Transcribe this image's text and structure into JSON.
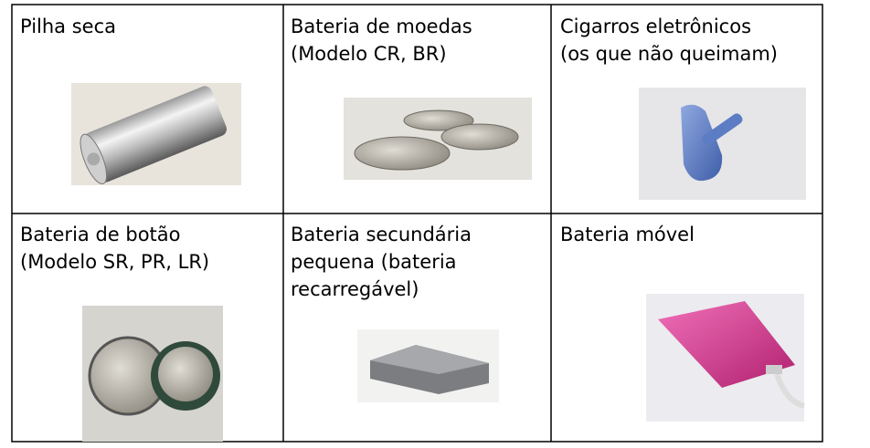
{
  "table": {
    "rows": [
      [
        {
          "lines": [
            "Pilha seca"
          ]
        },
        {
          "lines": [
            "Bateria de moedas",
            "(Modelo CR, BR)"
          ]
        },
        {
          "lines": [
            "Cigarros eletrônicos",
            "(os que não queimam)"
          ]
        }
      ],
      [
        {
          "lines": [
            "Bateria de botão",
            "(Modelo SR, PR, LR)"
          ]
        },
        {
          "lines": [
            "Bateria secundária",
            "pequena (bateria",
            "recarregável)"
          ]
        },
        {
          "lines": [
            "Bateria móvel"
          ]
        }
      ]
    ]
  }
}
